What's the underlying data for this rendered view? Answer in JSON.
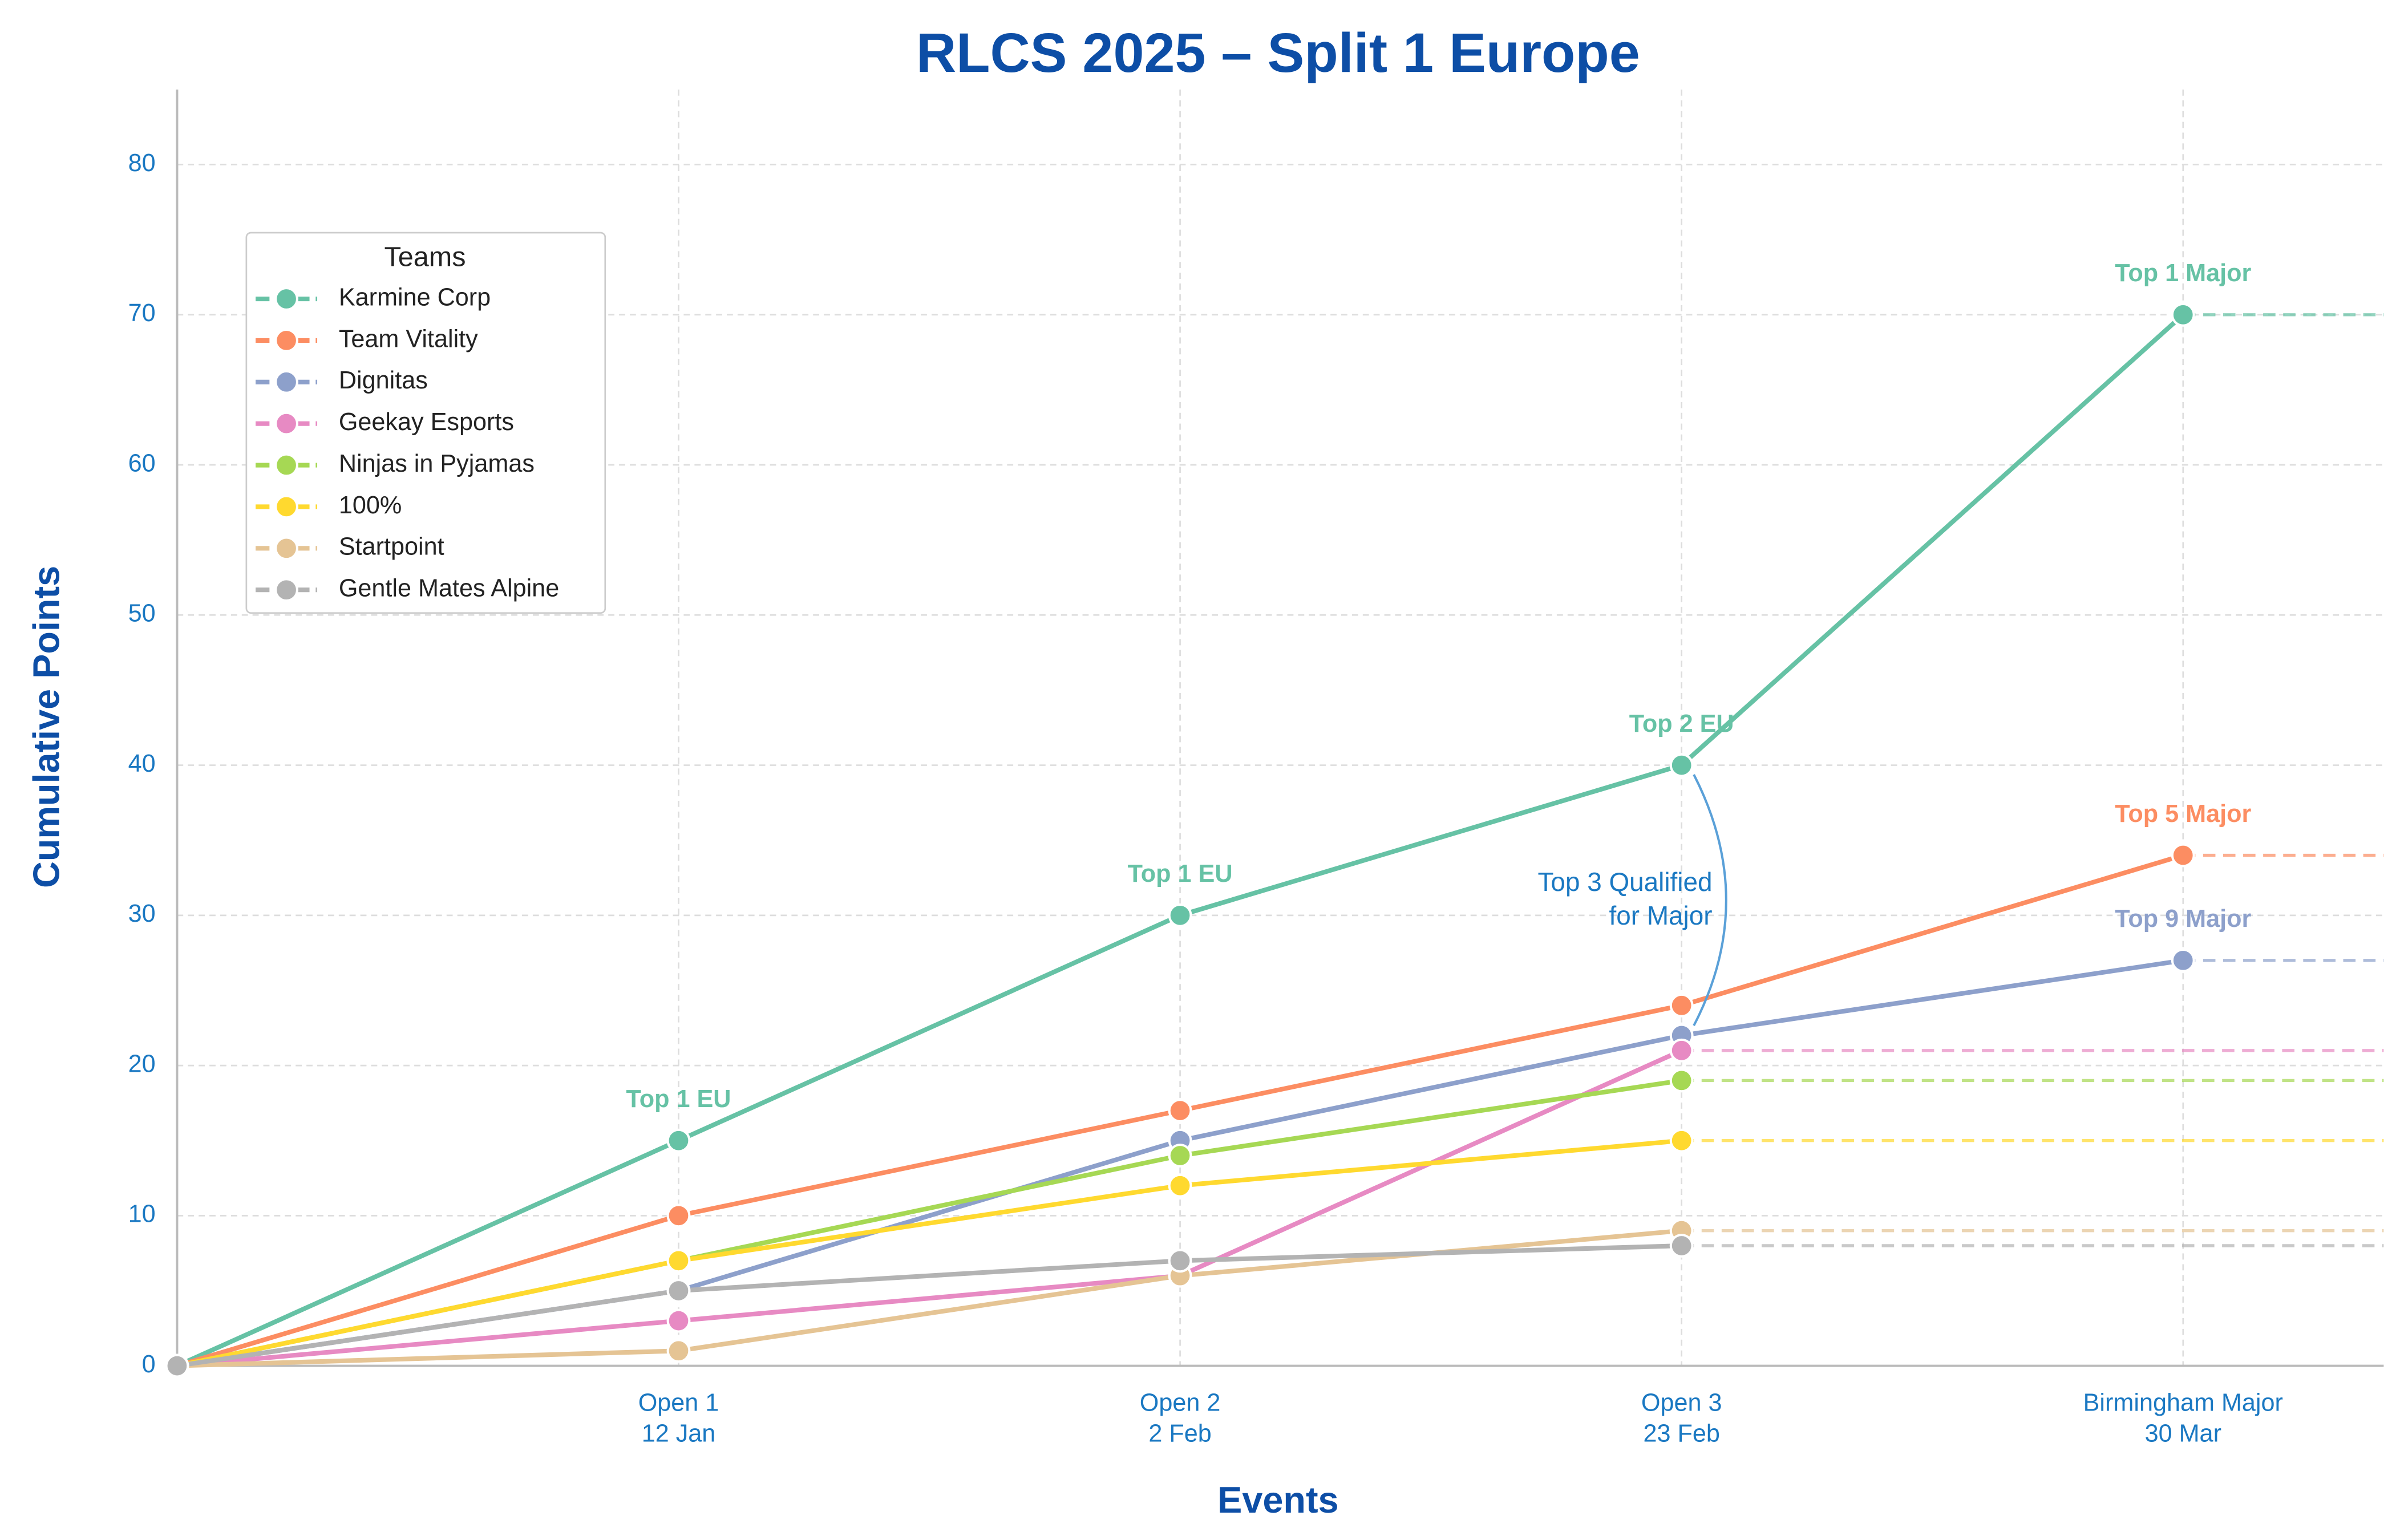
{
  "chart_data": {
    "type": "line",
    "title": "RLCS 2025 – Split 1 Europe",
    "x_label": "Events",
    "y_label": "Cumulative Points",
    "categories": [
      null,
      "Open 1",
      "Open 2",
      "Open 3",
      "Birmingham Major"
    ],
    "category_dates": [
      null,
      "12 Jan",
      "2 Feb",
      "23 Feb",
      "30 Mar"
    ],
    "ylim": [
      0,
      85
    ],
    "yticks": [
      0,
      10,
      20,
      30,
      40,
      50,
      60,
      70,
      80
    ],
    "grid": true,
    "legend_title": "Teams",
    "legend": "upper left",
    "series": [
      {
        "name": "Karmine Corp",
        "color": "#66c2a5",
        "values": [
          0,
          15,
          30,
          40,
          70
        ],
        "annotations": [
          null,
          "Top 1 EU",
          "Top 1 EU",
          "Top 2 EU",
          "Top 1 Major"
        ]
      },
      {
        "name": "Team Vitality",
        "color": "#fc8d62",
        "values": [
          0,
          10,
          17,
          24,
          34
        ],
        "annotations": [
          null,
          null,
          null,
          null,
          "Top 5 Major"
        ]
      },
      {
        "name": "Dignitas",
        "color": "#8da0cb",
        "values": [
          0,
          5,
          15,
          22,
          27
        ],
        "annotations": [
          null,
          null,
          null,
          null,
          "Top 9 Major"
        ]
      },
      {
        "name": "Geekay Esports",
        "color": "#e78ac3",
        "values": [
          0,
          3,
          6,
          21,
          null
        ]
      },
      {
        "name": "Ninjas in Pyjamas",
        "color": "#a6d854",
        "values": [
          0,
          7,
          14,
          19,
          null
        ]
      },
      {
        "name": "100%",
        "color": "#ffd92f",
        "values": [
          0,
          7,
          12,
          15,
          null
        ]
      },
      {
        "name": "Startpoint",
        "color": "#e5c494",
        "values": [
          0,
          1,
          6,
          9,
          null
        ]
      },
      {
        "name": "Gentle Mates Alpine",
        "color": "#b3b3b3",
        "values": [
          0,
          5,
          7,
          8,
          null
        ]
      }
    ],
    "callout": [
      "Top 3 Qualified",
      "for Major"
    ]
  }
}
